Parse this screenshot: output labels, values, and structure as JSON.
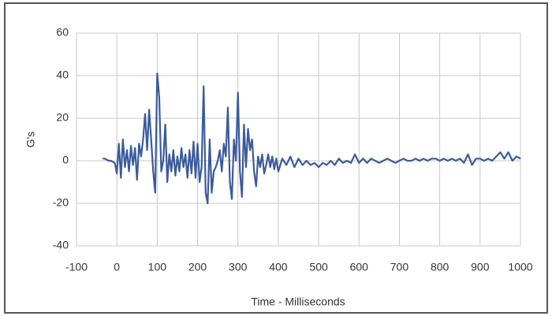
{
  "chart_data": {
    "type": "line",
    "x_label": "Time - Milliseconds",
    "y_label": "G's",
    "x": [
      -35,
      -30,
      -25,
      -20,
      -15,
      -10,
      -5,
      0,
      5,
      10,
      15,
      20,
      25,
      30,
      35,
      40,
      45,
      50,
      55,
      60,
      65,
      70,
      75,
      80,
      85,
      90,
      95,
      100,
      105,
      110,
      115,
      120,
      125,
      130,
      135,
      140,
      145,
      150,
      155,
      160,
      165,
      170,
      175,
      180,
      185,
      190,
      195,
      200,
      205,
      210,
      215,
      220,
      225,
      230,
      235,
      240,
      245,
      250,
      255,
      260,
      265,
      270,
      275,
      280,
      285,
      290,
      295,
      300,
      305,
      310,
      315,
      320,
      325,
      330,
      335,
      340,
      345,
      350,
      355,
      360,
      365,
      370,
      375,
      380,
      385,
      390,
      395,
      400,
      410,
      420,
      430,
      440,
      450,
      460,
      470,
      480,
      490,
      500,
      510,
      520,
      530,
      540,
      550,
      560,
      570,
      580,
      590,
      600,
      610,
      620,
      630,
      640,
      650,
      660,
      670,
      680,
      690,
      700,
      710,
      720,
      730,
      740,
      750,
      760,
      770,
      780,
      790,
      800,
      810,
      820,
      830,
      840,
      850,
      860,
      870,
      880,
      890,
      900,
      910,
      920,
      930,
      940,
      950,
      960,
      970,
      980,
      990,
      1000
    ],
    "series": [
      {
        "color": "#3b5b9b",
        "values": [
          1,
          1,
          0.5,
          0,
          0,
          -0.5,
          -1,
          -6,
          8,
          -8,
          10,
          -3,
          5,
          -5,
          7,
          -2,
          6,
          -9,
          8,
          2,
          10,
          22,
          5,
          24,
          10,
          -5,
          -15,
          41,
          30,
          -5,
          0,
          17,
          -10,
          3,
          -5,
          5,
          -7,
          2,
          -5,
          6,
          -3,
          3,
          -8,
          5,
          -6,
          9,
          -8,
          8,
          -10,
          -3,
          35,
          -15,
          -20,
          10,
          -15,
          -5,
          -3,
          0,
          5,
          -5,
          8,
          2,
          25,
          -10,
          -18,
          10,
          0,
          32,
          -5,
          -17,
          17,
          -3,
          15,
          5,
          10,
          -5,
          -12,
          2,
          -3,
          3,
          -6,
          -2,
          3,
          -3,
          2,
          -4,
          1,
          -5,
          1,
          -2,
          2,
          -3,
          1,
          -2,
          0,
          -2,
          -1,
          -3,
          -1,
          -2,
          0,
          -2,
          1,
          -1,
          0,
          -1,
          3,
          -1,
          1,
          -1,
          1,
          0,
          -1,
          0,
          1,
          0,
          -1,
          0,
          1,
          0,
          0,
          1,
          0,
          1,
          0,
          1,
          1,
          0,
          1,
          0,
          1,
          0,
          1,
          -1,
          3,
          -2,
          1,
          1,
          0,
          1,
          0,
          2,
          4,
          1,
          4,
          0,
          2,
          1
        ]
      }
    ],
    "xlim": [
      -100,
      1000
    ],
    "xticks": [
      -100,
      0,
      100,
      200,
      300,
      400,
      500,
      600,
      700,
      800,
      900,
      1000
    ],
    "ylim": [
      -40,
      60
    ],
    "yticks": [
      -40,
      -20,
      0,
      20,
      40,
      60
    ],
    "grid": true
  }
}
